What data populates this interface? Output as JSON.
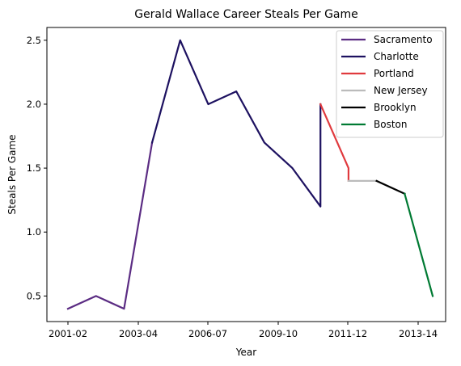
{
  "chart_data": {
    "type": "line",
    "title": "Gerald Wallace Career Steals Per Game",
    "xlabel": "Year",
    "ylabel": "Steals Per Game",
    "x_tick_labels": [
      "2001-02",
      "2003-04",
      "2006-07",
      "2009-10",
      "2011-12",
      "2013-14"
    ],
    "y_ticks": [
      0.5,
      1.0,
      1.5,
      2.0,
      2.5
    ],
    "ylim": [
      0.3,
      2.6
    ],
    "grid": false,
    "legend_position": "top-right",
    "series": [
      {
        "name": "Sacramento",
        "color": "#5b2c83",
        "points": [
          [
            2001,
            0.4
          ],
          [
            2002,
            0.5
          ],
          [
            2003,
            0.4
          ],
          [
            2004,
            1.7
          ]
        ]
      },
      {
        "name": "Charlotte",
        "color": "#1d1160",
        "points": [
          [
            2004,
            1.7
          ],
          [
            2005,
            2.5
          ],
          [
            2006,
            2.0
          ],
          [
            2007,
            2.1
          ],
          [
            2008,
            1.7
          ],
          [
            2009,
            1.5
          ],
          [
            2010,
            1.2
          ],
          [
            2010,
            2.0
          ]
        ]
      },
      {
        "name": "Portland",
        "color": "#e03a3e",
        "points": [
          [
            2010,
            2.0
          ],
          [
            2011,
            1.5
          ],
          [
            2011,
            1.4
          ]
        ]
      },
      {
        "name": "New Jersey",
        "color": "#bbbbbb",
        "points": [
          [
            2011,
            1.4
          ],
          [
            2012,
            1.4
          ]
        ]
      },
      {
        "name": "Brooklyn",
        "color": "#000000",
        "points": [
          [
            2012,
            1.4
          ],
          [
            2013,
            1.3
          ]
        ]
      },
      {
        "name": "Boston",
        "color": "#007a33",
        "points": [
          [
            2013,
            1.3
          ],
          [
            2014,
            0.5
          ]
        ]
      }
    ]
  }
}
